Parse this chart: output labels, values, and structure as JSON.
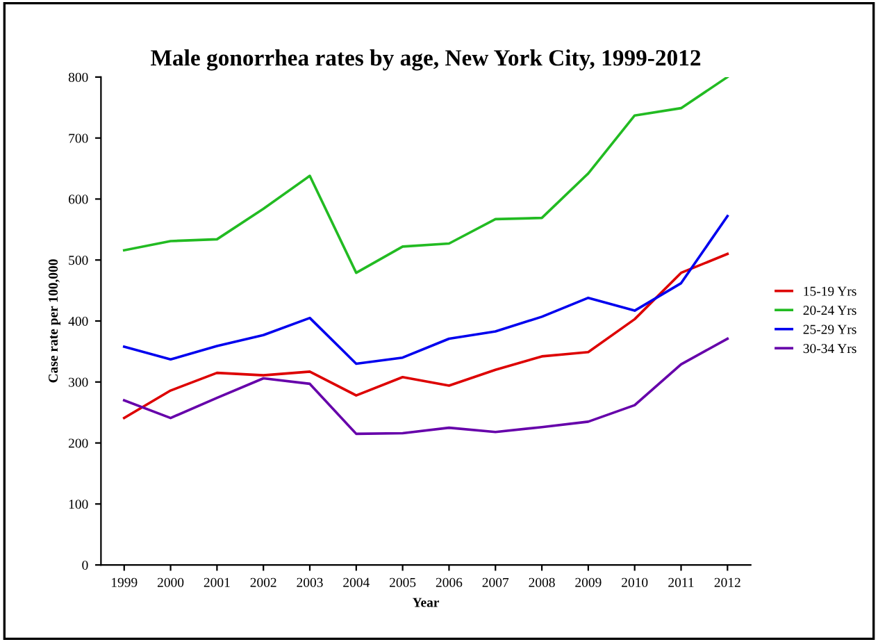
{
  "chart_data": {
    "type": "line",
    "title": "Male gonorrhea rates by age, New York City, 1999-2012",
    "xlabel": "Year",
    "ylabel": "Case rate per 100,000",
    "categories": [
      "1999",
      "2000",
      "2001",
      "2002",
      "2003",
      "2004",
      "2005",
      "2006",
      "2007",
      "2008",
      "2009",
      "2010",
      "2011",
      "2012"
    ],
    "series": [
      {
        "name": "15-19 Yrs",
        "color": "#dd0000",
        "values": [
          241,
          286,
          315,
          311,
          317,
          278,
          308,
          294,
          320,
          342,
          349,
          403,
          479,
          510
        ]
      },
      {
        "name": "20-24 Yrs",
        "color": "#22bb22",
        "values": [
          516,
          531,
          534,
          584,
          638,
          479,
          522,
          527,
          567,
          569,
          642,
          737,
          749,
          800
        ]
      },
      {
        "name": "25-29 Yrs",
        "color": "#0000ee",
        "values": [
          358,
          337,
          359,
          377,
          405,
          330,
          340,
          371,
          383,
          407,
          438,
          417,
          462,
          572
        ]
      },
      {
        "name": "30-34 Yrs",
        "color": "#6600aa",
        "values": [
          270,
          241,
          274,
          306,
          297,
          215,
          216,
          225,
          218,
          226,
          235,
          262,
          329,
          371
        ]
      }
    ],
    "ylim": [
      0,
      800
    ],
    "yticks": [
      0,
      100,
      200,
      300,
      400,
      500,
      600,
      700,
      800
    ],
    "grid": false,
    "legend": "right",
    "marker": "none",
    "line_style": "solid"
  }
}
